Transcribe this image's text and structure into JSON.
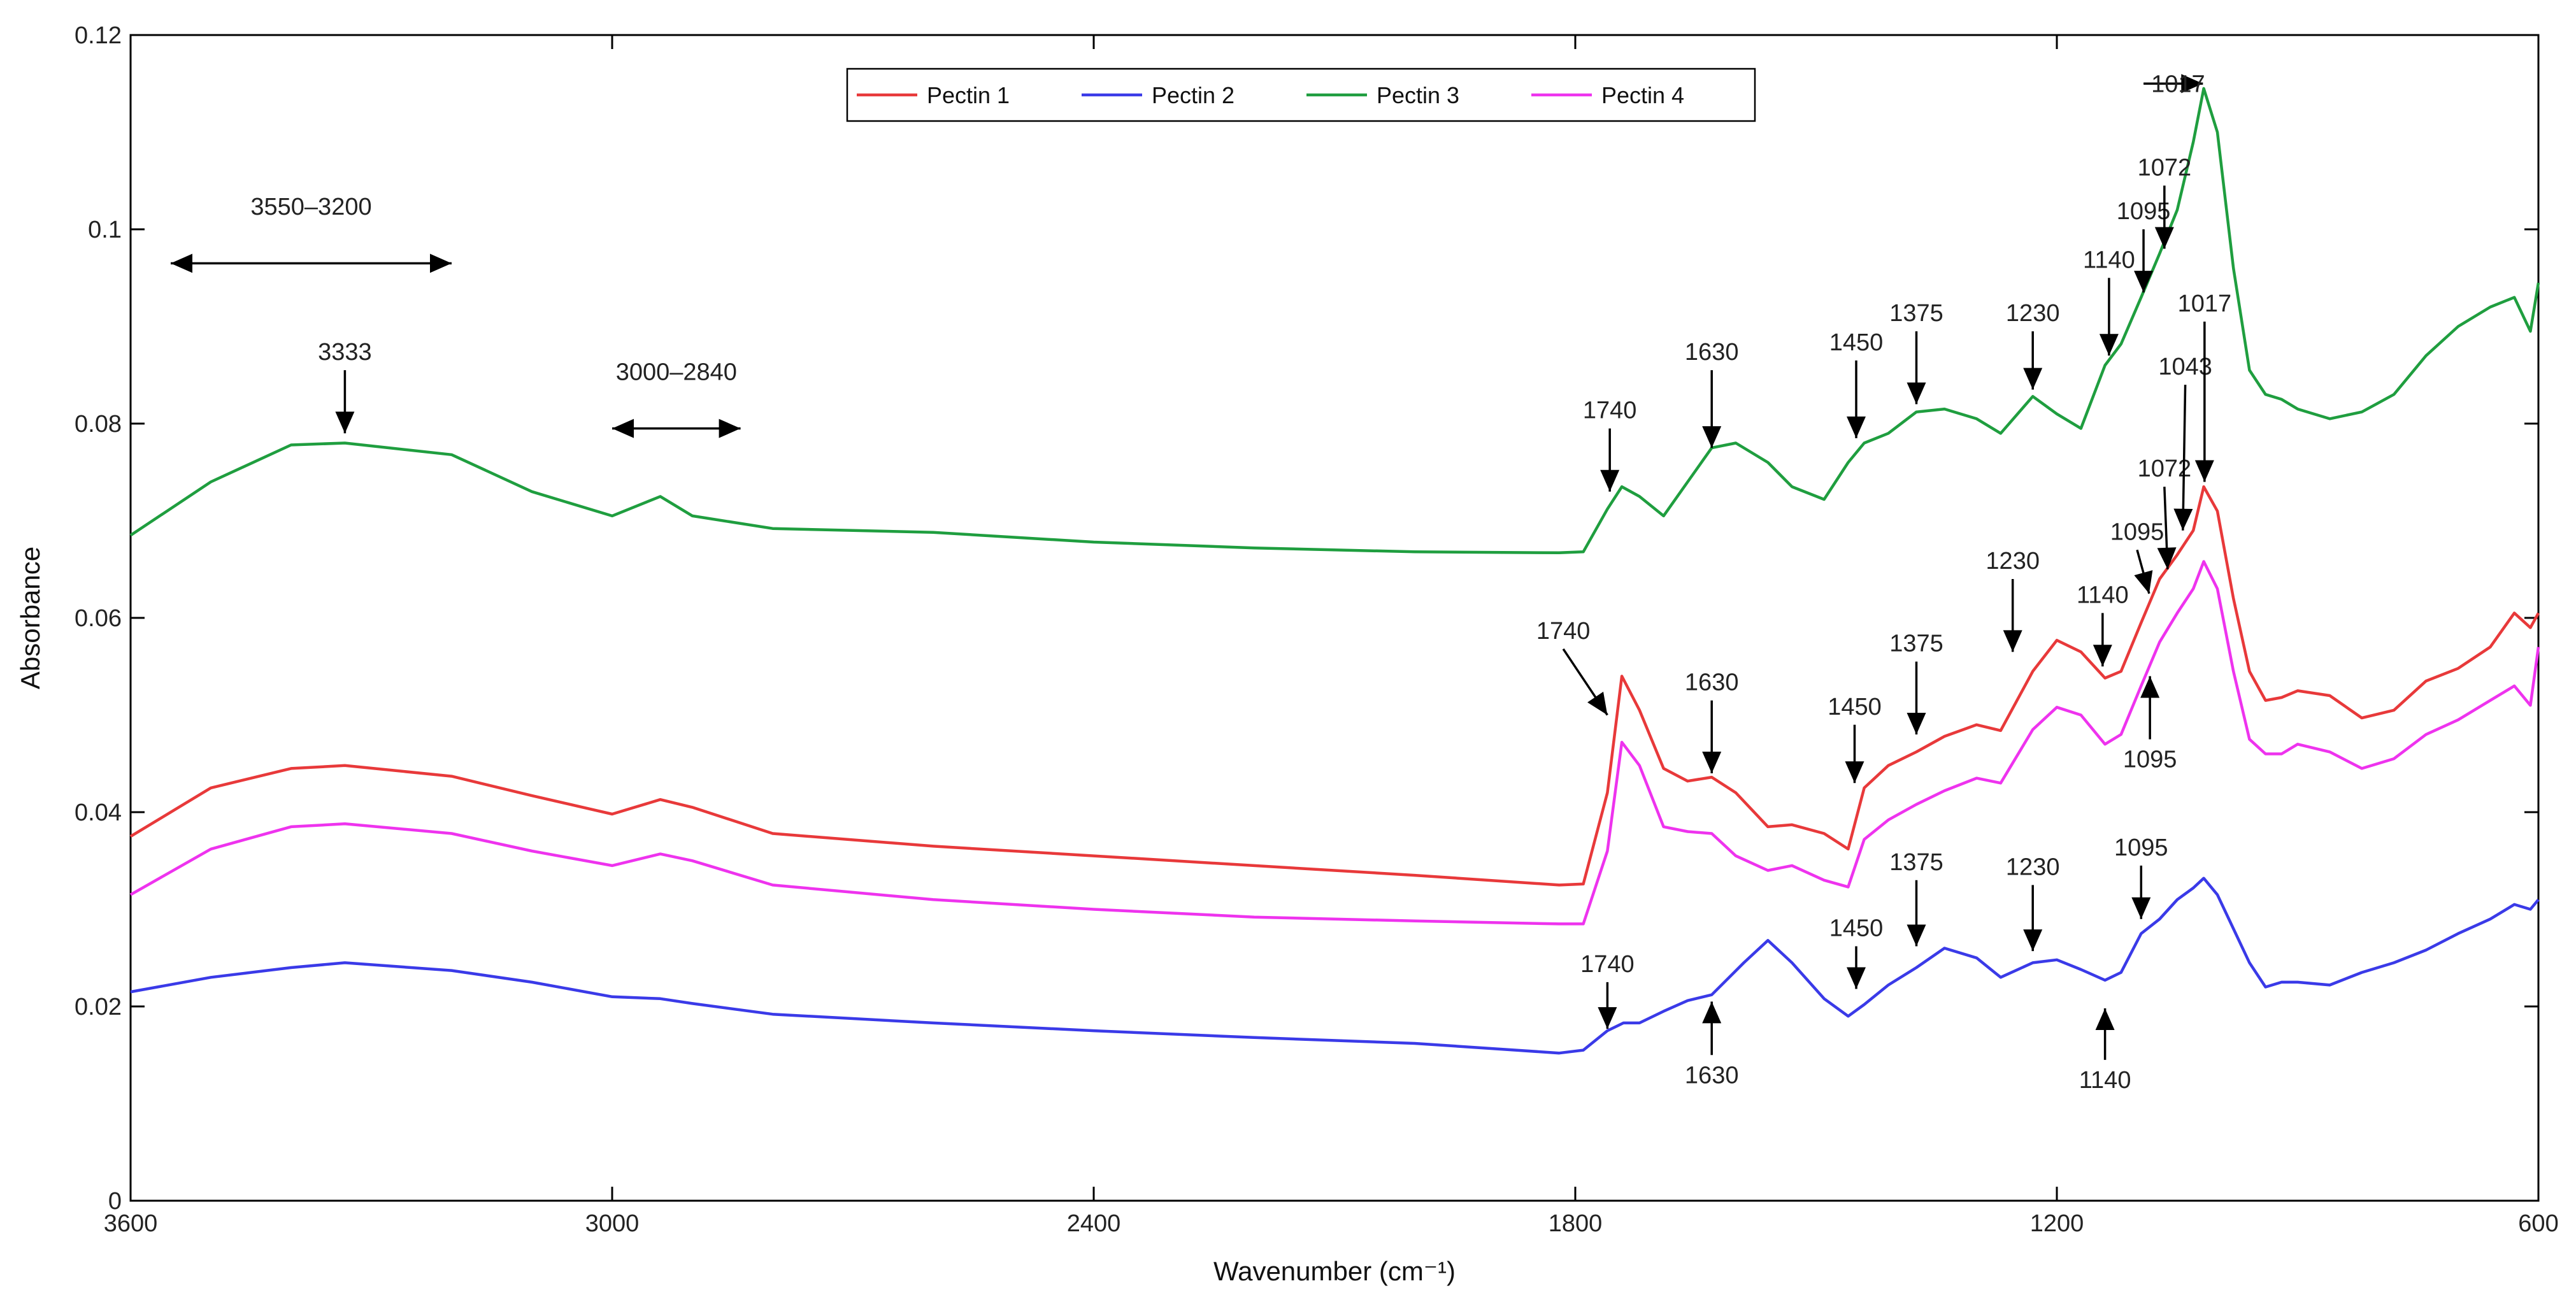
{
  "chart_data": {
    "type": "line",
    "title": "",
    "xlabel": "Wavenumber (cm⁻¹)",
    "ylabel": "Absorbance",
    "xlim": [
      3600,
      600
    ],
    "ylim": [
      0,
      0.12
    ],
    "x_ticks": [
      "3600",
      "3000",
      "2400",
      "1800",
      "1200",
      "600"
    ],
    "x_tick_values": [
      3600,
      3000,
      2400,
      1800,
      1200,
      600
    ],
    "y_ticks": [
      "0",
      "0.02",
      "0.04",
      "0.06",
      "0.08",
      "0.1",
      "0.12"
    ],
    "y_tick_values": [
      0,
      0.02,
      0.04,
      0.06,
      0.08,
      0.1,
      0.12
    ],
    "grid": false,
    "legend_position": "top-center",
    "series": [
      {
        "name": "Pectin 1",
        "color": "#e8393a",
        "x": [
          3600,
          3500,
          3400,
          3333,
          3200,
          3100,
          3000,
          2940,
          2900,
          2800,
          2600,
          2400,
          2200,
          2000,
          1820,
          1790,
          1760,
          1742,
          1720,
          1690,
          1660,
          1630,
          1600,
          1560,
          1530,
          1490,
          1460,
          1440,
          1410,
          1375,
          1340,
          1300,
          1270,
          1230,
          1200,
          1170,
          1140,
          1120,
          1095,
          1072,
          1050,
          1030,
          1017,
          1000,
          980,
          960,
          940,
          920,
          900,
          860,
          820,
          780,
          740,
          700,
          660,
          630,
          610,
          600
        ],
        "values": [
          0.0375,
          0.0425,
          0.0445,
          0.0448,
          0.0437,
          0.0417,
          0.0398,
          0.0413,
          0.0405,
          0.0378,
          0.0365,
          0.0355,
          0.0345,
          0.0335,
          0.0325,
          0.0326,
          0.042,
          0.054,
          0.0505,
          0.0445,
          0.0432,
          0.0436,
          0.042,
          0.0385,
          0.0387,
          0.0378,
          0.0362,
          0.0425,
          0.0448,
          0.0462,
          0.0478,
          0.049,
          0.0484,
          0.0545,
          0.0577,
          0.0565,
          0.0538,
          0.0545,
          0.0595,
          0.064,
          0.0665,
          0.069,
          0.0735,
          0.071,
          0.062,
          0.0545,
          0.0515,
          0.0518,
          0.0525,
          0.052,
          0.0497,
          0.0505,
          0.0535,
          0.0548,
          0.057,
          0.0605,
          0.059,
          0.0605
        ]
      },
      {
        "name": "Pectin 2",
        "color": "#3a3ae8",
        "x": [
          3600,
          3500,
          3400,
          3333,
          3200,
          3100,
          3000,
          2940,
          2900,
          2800,
          2600,
          2400,
          2200,
          2000,
          1820,
          1790,
          1760,
          1740,
          1720,
          1690,
          1660,
          1630,
          1590,
          1560,
          1530,
          1490,
          1460,
          1440,
          1410,
          1375,
          1340,
          1300,
          1270,
          1230,
          1200,
          1170,
          1140,
          1120,
          1095,
          1072,
          1050,
          1030,
          1017,
          1000,
          980,
          960,
          940,
          920,
          900,
          860,
          820,
          780,
          740,
          700,
          660,
          630,
          610,
          600
        ],
        "values": [
          0.0215,
          0.023,
          0.024,
          0.0245,
          0.0237,
          0.0225,
          0.021,
          0.0208,
          0.0203,
          0.0192,
          0.0183,
          0.0175,
          0.0168,
          0.0162,
          0.0152,
          0.0155,
          0.0175,
          0.0183,
          0.0183,
          0.0195,
          0.0206,
          0.0212,
          0.0245,
          0.0268,
          0.0245,
          0.0208,
          0.019,
          0.0202,
          0.0222,
          0.024,
          0.026,
          0.025,
          0.023,
          0.0245,
          0.0248,
          0.0238,
          0.0227,
          0.0235,
          0.0275,
          0.029,
          0.031,
          0.0322,
          0.0332,
          0.0315,
          0.028,
          0.0245,
          0.022,
          0.0225,
          0.0225,
          0.0222,
          0.0235,
          0.0245,
          0.0258,
          0.0275,
          0.029,
          0.0305,
          0.03,
          0.031
        ]
      },
      {
        "name": "Pectin 3",
        "color": "#1f9e3f",
        "x": [
          3600,
          3500,
          3400,
          3333,
          3200,
          3100,
          3000,
          2940,
          2900,
          2800,
          2600,
          2400,
          2200,
          2000,
          1820,
          1790,
          1760,
          1742,
          1720,
          1690,
          1660,
          1630,
          1600,
          1560,
          1530,
          1490,
          1460,
          1440,
          1410,
          1375,
          1340,
          1300,
          1270,
          1230,
          1200,
          1170,
          1140,
          1120,
          1095,
          1072,
          1050,
          1030,
          1017,
          1000,
          980,
          960,
          940,
          920,
          900,
          860,
          820,
          780,
          740,
          700,
          660,
          630,
          610,
          600
        ],
        "values": [
          0.0685,
          0.074,
          0.0778,
          0.078,
          0.0768,
          0.073,
          0.0705,
          0.0725,
          0.0705,
          0.0692,
          0.0688,
          0.0678,
          0.0672,
          0.0668,
          0.0667,
          0.0668,
          0.0712,
          0.0735,
          0.0725,
          0.0705,
          0.074,
          0.0775,
          0.078,
          0.076,
          0.0735,
          0.0722,
          0.076,
          0.078,
          0.079,
          0.0812,
          0.0815,
          0.0805,
          0.079,
          0.0828,
          0.081,
          0.0795,
          0.086,
          0.0882,
          0.093,
          0.0975,
          0.102,
          0.109,
          0.1145,
          0.11,
          0.096,
          0.0855,
          0.083,
          0.0825,
          0.0815,
          0.0805,
          0.0812,
          0.083,
          0.087,
          0.09,
          0.092,
          0.093,
          0.0895,
          0.0945
        ]
      },
      {
        "name": "Pectin 4",
        "color": "#ee33ee",
        "x": [
          3600,
          3500,
          3400,
          3333,
          3200,
          3100,
          3000,
          2940,
          2900,
          2800,
          2600,
          2400,
          2200,
          2000,
          1820,
          1790,
          1760,
          1742,
          1720,
          1690,
          1660,
          1630,
          1600,
          1560,
          1530,
          1490,
          1460,
          1440,
          1410,
          1375,
          1340,
          1300,
          1270,
          1230,
          1200,
          1170,
          1140,
          1120,
          1095,
          1072,
          1050,
          1030,
          1017,
          1000,
          980,
          960,
          940,
          920,
          900,
          860,
          820,
          780,
          740,
          700,
          660,
          630,
          610,
          600
        ],
        "values": [
          0.0315,
          0.0362,
          0.0385,
          0.0388,
          0.0378,
          0.036,
          0.0345,
          0.0357,
          0.035,
          0.0325,
          0.031,
          0.03,
          0.0292,
          0.0288,
          0.0285,
          0.0285,
          0.036,
          0.0472,
          0.0448,
          0.0385,
          0.038,
          0.0378,
          0.0355,
          0.034,
          0.0345,
          0.033,
          0.0323,
          0.0372,
          0.0392,
          0.0408,
          0.0422,
          0.0435,
          0.043,
          0.0485,
          0.0508,
          0.05,
          0.047,
          0.048,
          0.053,
          0.0575,
          0.0605,
          0.063,
          0.0658,
          0.063,
          0.0545,
          0.0475,
          0.046,
          0.046,
          0.047,
          0.0462,
          0.0445,
          0.0455,
          0.048,
          0.0495,
          0.0515,
          0.053,
          0.051,
          0.057
        ]
      }
    ],
    "annotations": [
      {
        "text": "3550–3200",
        "kind": "range",
        "x1": 3550,
        "x2": 3200,
        "y": 0.0965,
        "label_y": 0.1015
      },
      {
        "text": "3333",
        "kind": "down",
        "x": 3333,
        "y_tip": 0.079,
        "y_tail": 0.0855
      },
      {
        "text": "3000–2840",
        "kind": "range",
        "x1": 3000,
        "x2": 2840,
        "y": 0.0795,
        "label_y": 0.0845
      },
      {
        "text": "1740",
        "kind": "down",
        "x": 1757,
        "y_tip": 0.073,
        "y_tail": 0.0795
      },
      {
        "text": "1630",
        "kind": "down",
        "x": 1630,
        "y_tip": 0.0775,
        "y_tail": 0.0855
      },
      {
        "text": "1450",
        "kind": "down",
        "x": 1450,
        "y_tip": 0.0785,
        "y_tail": 0.0865
      },
      {
        "text": "1375",
        "kind": "down",
        "x": 1375,
        "y_tip": 0.082,
        "y_tail": 0.0895
      },
      {
        "text": "1230",
        "kind": "down",
        "x": 1230,
        "y_tip": 0.0835,
        "y_tail": 0.0895
      },
      {
        "text": "1140",
        "kind": "down",
        "x": 1135,
        "y_tip": 0.087,
        "y_tail": 0.095
      },
      {
        "text": "1095",
        "kind": "down",
        "x": 1092,
        "y_tip": 0.0935,
        "y_tail": 0.1
      },
      {
        "text": "1072",
        "kind": "down",
        "x": 1066,
        "y_tip": 0.098,
        "y_tail": 0.1045
      },
      {
        "text": "1017",
        "kind": "left",
        "x_tip": 1018,
        "x_tail": 1092,
        "y": 0.115
      },
      {
        "text": "1740",
        "kind": "diag",
        "x_tip": 1760,
        "y_tip": 0.05,
        "x_tail": 1815,
        "y_tail": 0.0568
      },
      {
        "text": "1630",
        "kind": "down",
        "x": 1630,
        "y_tip": 0.044,
        "y_tail": 0.0515
      },
      {
        "text": "1450",
        "kind": "down",
        "x": 1452,
        "y_tip": 0.043,
        "y_tail": 0.049
      },
      {
        "text": "1375",
        "kind": "down",
        "x": 1375,
        "y_tip": 0.048,
        "y_tail": 0.0555
      },
      {
        "text": "1230",
        "kind": "down",
        "x": 1255,
        "y_tip": 0.0565,
        "y_tail": 0.064
      },
      {
        "text": "1140",
        "kind": "down",
        "x": 1143,
        "y_tip": 0.055,
        "y_tail": 0.0605
      },
      {
        "text": "1095",
        "kind": "diag",
        "x_tip": 1085,
        "y_tip": 0.0625,
        "x_tail": 1100,
        "y_tail": 0.067
      },
      {
        "text": "1072",
        "kind": "diag",
        "x_tip": 1062,
        "y_tip": 0.065,
        "x_tail": 1066,
        "y_tail": 0.0735
      },
      {
        "text": "1043",
        "kind": "diag",
        "x_tip": 1043,
        "y_tip": 0.069,
        "x_tail": 1040,
        "y_tail": 0.084
      },
      {
        "text": "1017",
        "kind": "diag",
        "x_tip": 1016,
        "y_tip": 0.074,
        "x_tail": 1016,
        "y_tail": 0.0905
      },
      {
        "text": "1095",
        "kind": "up",
        "x": 1084,
        "y_tip": 0.054,
        "y_tail": 0.0475
      },
      {
        "text": "1740",
        "kind": "down",
        "x": 1760,
        "y_tip": 0.0177,
        "y_tail": 0.0225
      },
      {
        "text": "1630",
        "kind": "up",
        "x": 1630,
        "y_tip": 0.0205,
        "y_tail": 0.015
      },
      {
        "text": "1450",
        "kind": "down",
        "x": 1450,
        "y_tip": 0.0218,
        "y_tail": 0.0262
      },
      {
        "text": "1375",
        "kind": "down",
        "x": 1375,
        "y_tip": 0.0262,
        "y_tail": 0.033
      },
      {
        "text": "1230",
        "kind": "down",
        "x": 1230,
        "y_tip": 0.0257,
        "y_tail": 0.0325
      },
      {
        "text": "1140",
        "kind": "up",
        "x": 1140,
        "y_tip": 0.0198,
        "y_tail": 0.0145
      },
      {
        "text": "1095",
        "kind": "down",
        "x": 1095,
        "y_tip": 0.029,
        "y_tail": 0.0345
      }
    ]
  }
}
